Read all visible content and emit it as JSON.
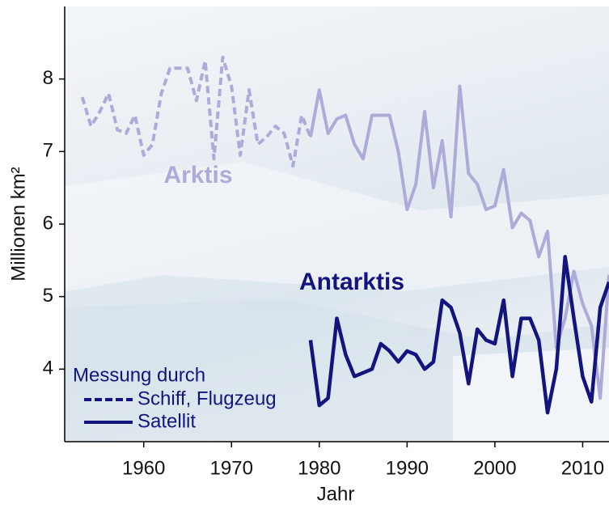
{
  "chart_data": {
    "type": "line",
    "x": [
      1953,
      1954,
      1955,
      1956,
      1957,
      1958,
      1959,
      1960,
      1961,
      1962,
      1963,
      1964,
      1965,
      1966,
      1967,
      1968,
      1969,
      1970,
      1971,
      1972,
      1973,
      1974,
      1975,
      1976,
      1977,
      1978,
      1979,
      1980,
      1981,
      1982,
      1983,
      1984,
      1985,
      1986,
      1987,
      1988,
      1989,
      1990,
      1991,
      1992,
      1993,
      1994,
      1995,
      1996,
      1997,
      1998,
      1999,
      2000,
      2001,
      2002,
      2003,
      2004,
      2005,
      2006,
      2007,
      2008,
      2009,
      2010,
      2011,
      2012,
      2013
    ],
    "series": [
      {
        "name": "Arktis",
        "color": "#aeabd8",
        "dashed_until": 1979,
        "values": [
          7.75,
          7.35,
          7.55,
          7.8,
          7.3,
          7.25,
          7.5,
          6.95,
          7.1,
          7.8,
          8.15,
          8.15,
          8.15,
          7.7,
          8.25,
          6.9,
          8.3,
          7.9,
          6.95,
          7.85,
          7.1,
          7.2,
          7.35,
          7.25,
          6.8,
          7.5,
          7.2,
          7.85,
          7.25,
          7.45,
          7.5,
          7.1,
          6.9,
          7.5,
          7.5,
          7.5,
          7.0,
          6.2,
          6.55,
          7.55,
          6.5,
          7.15,
          6.1,
          7.9,
          6.7,
          6.55,
          6.2,
          6.25,
          6.75,
          5.95,
          6.15,
          6.05,
          5.55,
          5.9,
          4.3,
          4.7,
          5.35,
          4.9,
          4.6,
          3.6,
          5.3
        ]
      },
      {
        "name": "Antarktis",
        "color": "#14147f",
        "values": [
          null,
          null,
          null,
          null,
          null,
          null,
          null,
          null,
          null,
          null,
          null,
          null,
          null,
          null,
          null,
          null,
          null,
          null,
          null,
          null,
          null,
          null,
          null,
          null,
          null,
          null,
          4.4,
          3.5,
          3.6,
          4.7,
          4.2,
          3.9,
          3.95,
          4.0,
          4.35,
          4.25,
          4.1,
          4.25,
          4.2,
          4.0,
          4.1,
          4.95,
          4.85,
          4.5,
          3.8,
          4.55,
          4.4,
          4.35,
          4.95,
          3.9,
          4.7,
          4.7,
          4.4,
          3.4,
          4.0,
          5.55,
          4.7,
          3.9,
          3.55,
          4.85,
          5.2
        ]
      }
    ],
    "xlim": [
      1951,
      2013
    ],
    "xticks": [
      1960,
      1970,
      1980,
      1990,
      2000,
      2010
    ],
    "ylim": [
      3,
      9
    ],
    "yticks": [
      4,
      5,
      6,
      7,
      8
    ],
    "xlabel": "Jahr",
    "ylabel": "Millionen km²",
    "legend": {
      "title": "Messung durch",
      "color": "#14147f",
      "entries": [
        {
          "label": "Schiff, Flugzeug",
          "dashed": true
        },
        {
          "label": "Satellit",
          "dashed": false
        }
      ]
    }
  }
}
